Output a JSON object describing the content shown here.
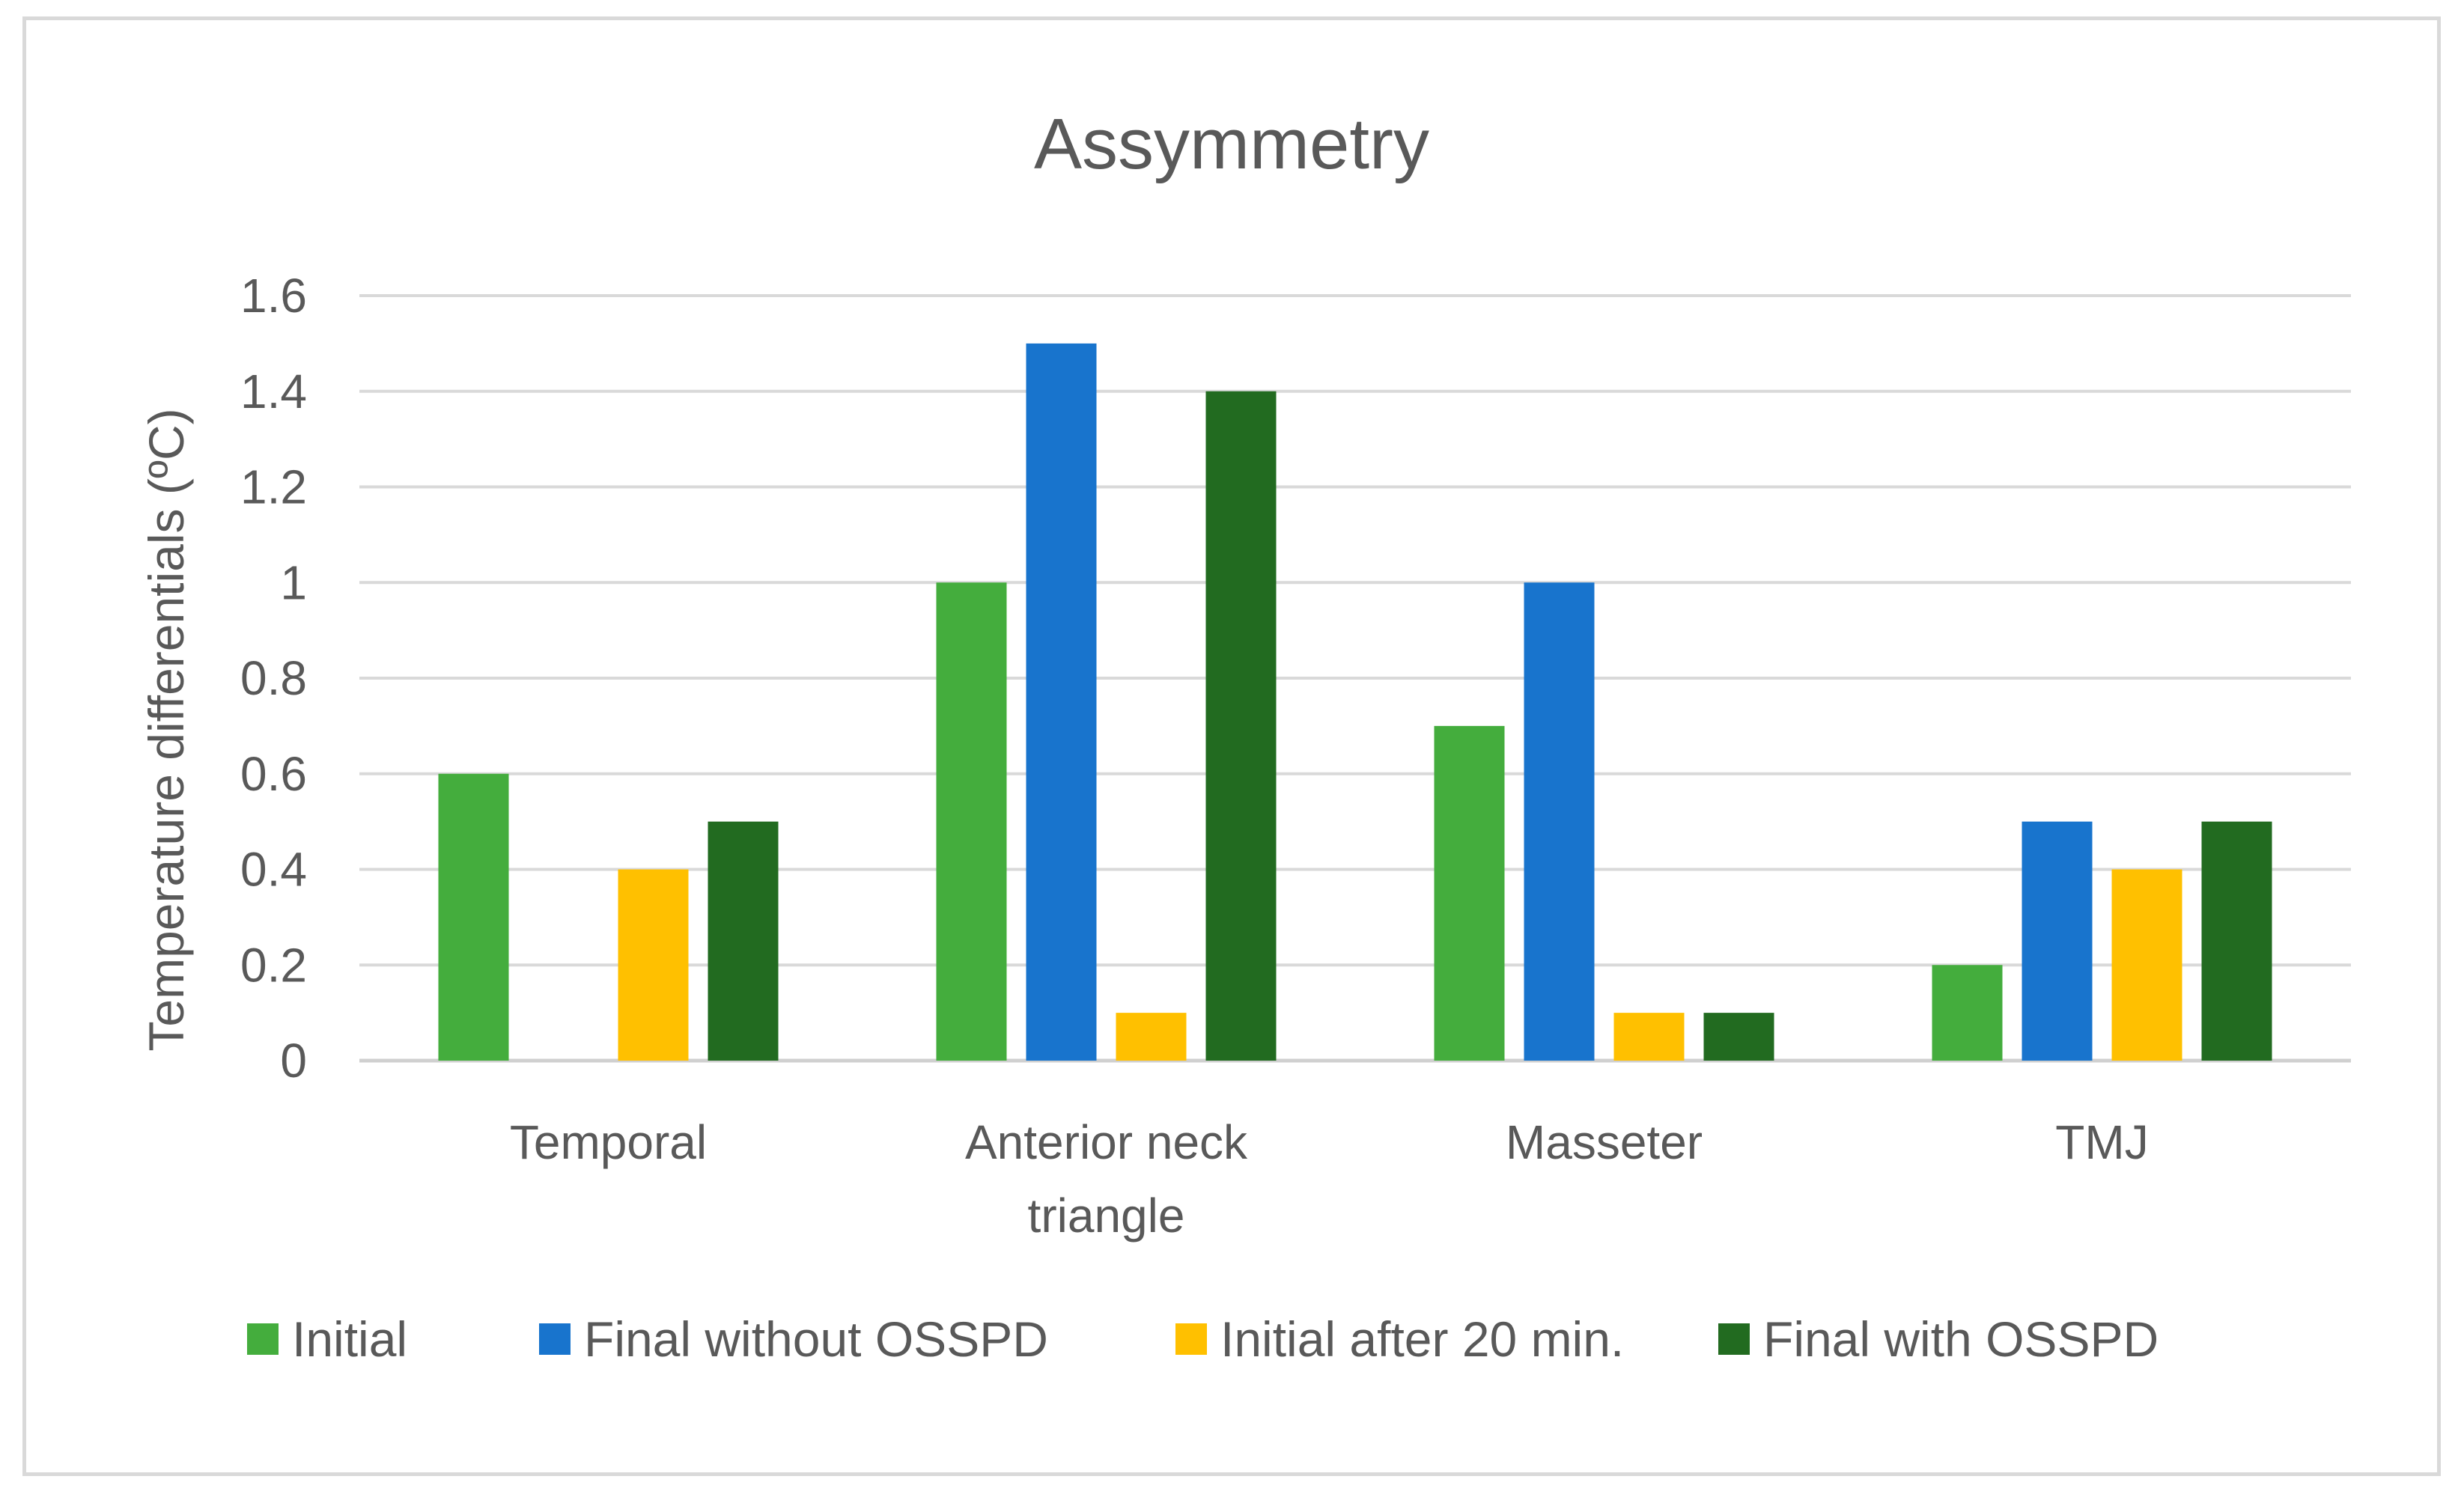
{
  "chart_data": {
    "type": "bar",
    "title": "Assymmetry",
    "xlabel": "",
    "ylabel": "Temperature differentials (ºC)",
    "ylim": [
      0,
      1.6
    ],
    "yticks": [
      "0",
      "0.2",
      "0.4",
      "0.6",
      "0.8",
      "1",
      "1.2",
      "1.4",
      "1.6"
    ],
    "grid": true,
    "legend_position": "bottom",
    "categories": [
      [
        "Temporal"
      ],
      [
        "Anterior neck",
        "triangle"
      ],
      [
        "Masseter"
      ],
      [
        "TMJ"
      ]
    ],
    "series": [
      {
        "name": "Initial",
        "color": "#44ad3d",
        "values": [
          0.6,
          1.0,
          0.7,
          0.2
        ]
      },
      {
        "name": "Final without OSSPD",
        "color": "#1874cd",
        "values": [
          0,
          1.5,
          1.0,
          0.5
        ]
      },
      {
        "name": "Initial after 20 min.",
        "color": "#ffc000",
        "values": [
          0.4,
          0.1,
          0.1,
          0.4
        ]
      },
      {
        "name": "Final with OSSPD",
        "color": "#226b20",
        "values": [
          0.5,
          1.4,
          0.1,
          0.5
        ]
      }
    ]
  }
}
